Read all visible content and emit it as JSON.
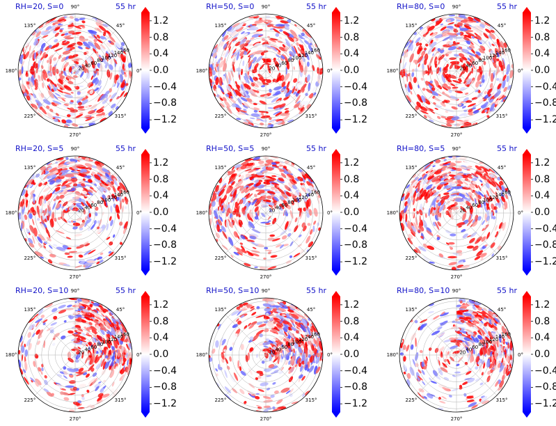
{
  "chart_data": {
    "type": "polar-contour-grid",
    "rows": 3,
    "cols": 3,
    "colorbar": {
      "ticks": [
        "1.2",
        "0.8",
        "0.4",
        "0.0",
        "−0.4",
        "−0.8",
        "−1.2"
      ],
      "tick_values": [
        1.2,
        0.8,
        0.4,
        0.0,
        -0.4,
        -0.8,
        -1.2
      ],
      "range": [
        -1.4,
        1.4
      ],
      "colors": {
        "low": "#0000ff",
        "mid": "#ffffff",
        "high": "#ff0000"
      }
    },
    "angle_labels": [
      "90°",
      "45°",
      "0°",
      "315°",
      "270°",
      "225°",
      "180°",
      "135°"
    ],
    "angle_values": [
      90,
      45,
      0,
      315,
      270,
      225,
      180,
      135
    ],
    "radial_labels": [
      "20",
      "40",
      "60",
      "80",
      "100",
      "120",
      "140",
      "160"
    ],
    "radial_values": [
      20,
      40,
      60,
      80,
      100,
      120,
      140,
      160
    ],
    "radial_max": 170,
    "panels": [
      {
        "title": "RH=20, S=0",
        "time": "55 hr",
        "rh": 20,
        "shear": 0
      },
      {
        "title": "RH=50, S=0",
        "time": "55 hr",
        "rh": 50,
        "shear": 0
      },
      {
        "title": "RH=80, S=0",
        "time": "55 hr",
        "rh": 80,
        "shear": 0
      },
      {
        "title": "RH=20, S=5",
        "time": "55 hr",
        "rh": 20,
        "shear": 5
      },
      {
        "title": "RH=50, S=5",
        "time": "55 hr",
        "rh": 50,
        "shear": 5
      },
      {
        "title": "RH=80, S=5",
        "time": "55 hr",
        "rh": 80,
        "shear": 5
      },
      {
        "title": "RH=20, S=10",
        "time": "55 hr",
        "rh": 20,
        "shear": 10
      },
      {
        "title": "RH=50, S=10",
        "time": "55 hr",
        "rh": 50,
        "shear": 10
      },
      {
        "title": "RH=80, S=10",
        "time": "55 hr",
        "rh": 80,
        "shear": 10
      }
    ]
  }
}
